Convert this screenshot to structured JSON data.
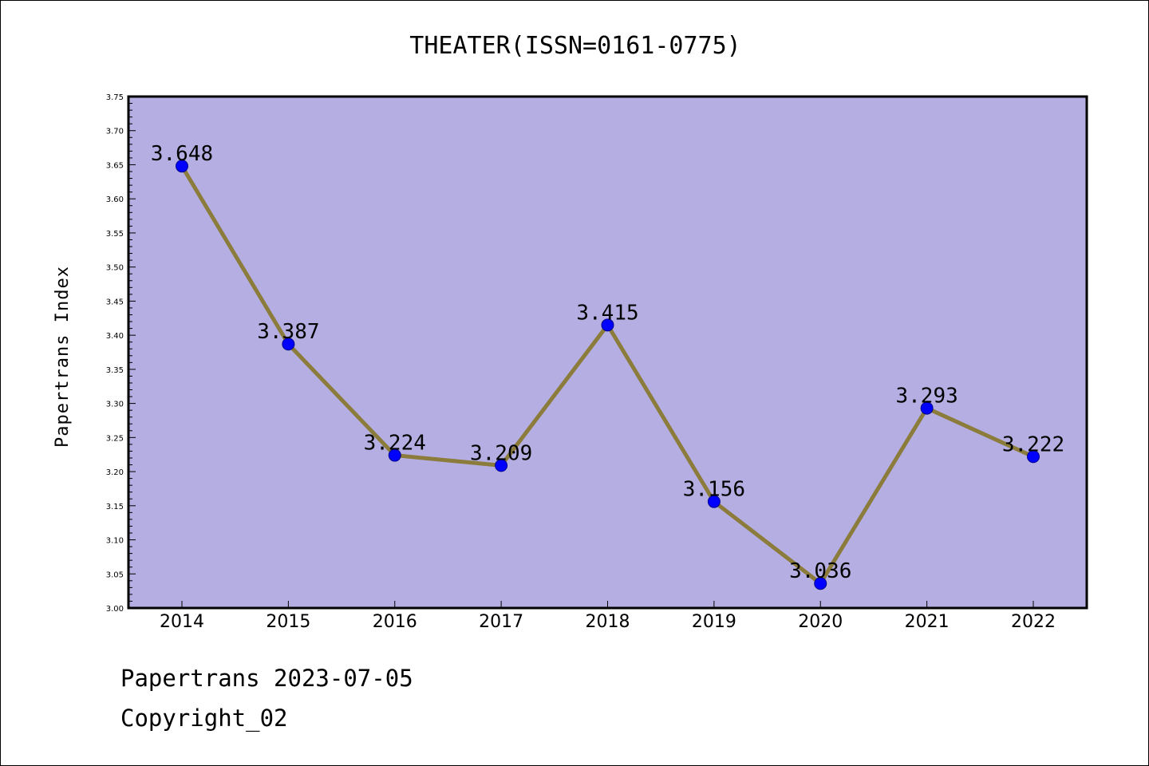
{
  "chart_data": {
    "type": "line",
    "title": "THEATER(ISSN=0161-0775)",
    "xlabel": "",
    "ylabel": "Papertrans Index",
    "categories": [
      "2014",
      "2015",
      "2016",
      "2017",
      "2018",
      "2019",
      "2020",
      "2021",
      "2022"
    ],
    "values": [
      3.648,
      3.387,
      3.224,
      3.209,
      3.415,
      3.156,
      3.036,
      3.293,
      3.222
    ],
    "value_labels": [
      "3.648",
      "3.387",
      "3.224",
      "3.209",
      "3.415",
      "3.156",
      "3.036",
      "3.293",
      "3.222"
    ],
    "ylim": [
      3.0,
      3.75
    ],
    "yticks": [
      "3.00",
      "3.05",
      "3.10",
      "3.15",
      "3.20",
      "3.25",
      "3.30",
      "3.35",
      "3.40",
      "3.45",
      "3.50",
      "3.55",
      "3.60",
      "3.65",
      "3.70",
      "3.75"
    ],
    "grid": false,
    "legend": "none",
    "colors": {
      "plot_background": "#b5aee2",
      "line": "#8c7c3c",
      "marker": "#0000ff"
    }
  },
  "footer": {
    "line1": "Papertrans 2023-07-05",
    "line2": "Copyright_02"
  }
}
